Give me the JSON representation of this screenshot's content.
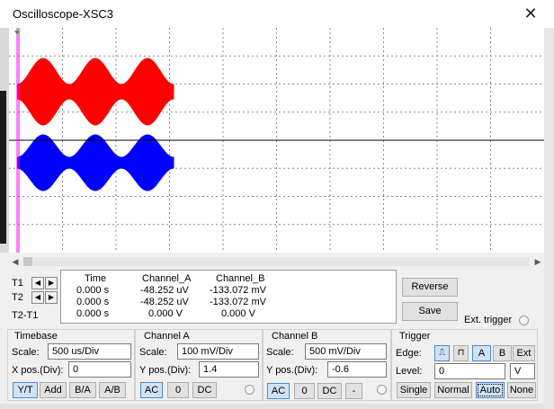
{
  "window": {
    "title": "Oscilloscope-XSC3",
    "close_label": "✕"
  },
  "readout": {
    "headers": [
      "Time",
      "Channel_A",
      "Channel_B"
    ],
    "rows": [
      {
        "label": "T1",
        "time": "0.000 s",
        "a": "-48.252 uV",
        "b": "-133.072 mV"
      },
      {
        "label": "T2",
        "time": "0.000 s",
        "a": "-48.252 uV",
        "b": "-133.072 mV"
      },
      {
        "label": "T2-T1",
        "time": "0.000 s",
        "a": "0.000 V",
        "b": "0.000 V"
      }
    ]
  },
  "buttons": {
    "reverse": "Reverse",
    "save": "Save",
    "ext_trigger": "Ext. trigger"
  },
  "timebase": {
    "title": "Timebase",
    "scale_label": "Scale:",
    "scale": "500 us/Div",
    "xpos_label": "X pos.(Div):",
    "xpos": "0",
    "modes": [
      "Y/T",
      "Add",
      "B/A",
      "A/B"
    ]
  },
  "channel_a": {
    "title": "Channel A",
    "scale_label": "Scale:",
    "scale": "100 mV/Div",
    "ypos_label": "Y pos.(Div):",
    "ypos": "1.4",
    "couplings": [
      "AC",
      "0",
      "DC"
    ]
  },
  "channel_b": {
    "title": "Channel B",
    "scale_label": "Scale:",
    "scale": "500 mV/Div",
    "ypos_label": "Y pos.(Div):",
    "ypos": "-0.6",
    "couplings": [
      "AC",
      "0",
      "DC",
      "-"
    ]
  },
  "trigger": {
    "title": "Trigger",
    "edge_label": "Edge:",
    "level_label": "Level:",
    "level": "0",
    "level_unit": "V",
    "edge_buttons": [
      "A",
      "B",
      "Ext"
    ],
    "rising_icon": "rising-edge-icon",
    "falling_icon": "falling-edge-icon",
    "modes": [
      "Single",
      "Normal",
      "Auto",
      "None"
    ]
  },
  "colors": {
    "screen": "#000000",
    "grid": "#808080",
    "channel_a": "#ff0000",
    "channel_b": "#0000ff",
    "cursor": "#ff00ff"
  }
}
